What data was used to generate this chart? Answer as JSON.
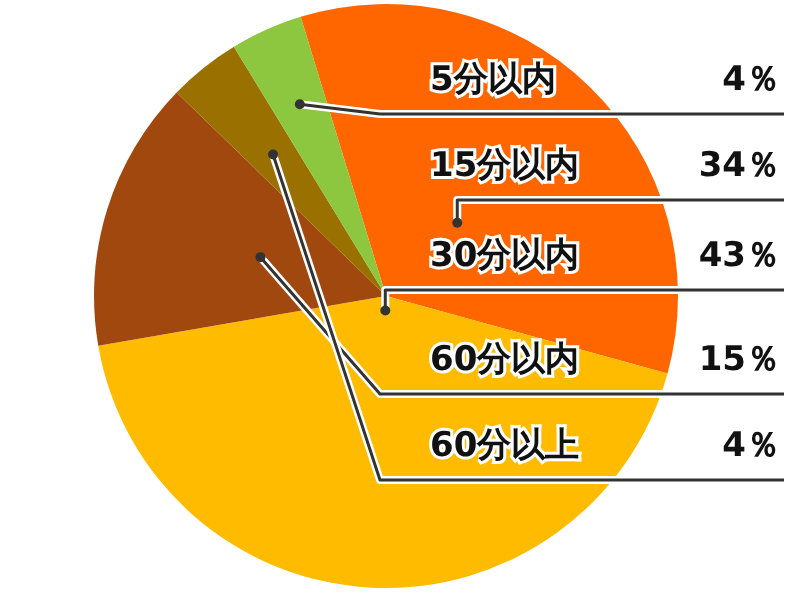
{
  "chart_data": {
    "type": "pie",
    "categories": [
      "5分以内",
      "15分以内",
      "30分以内",
      "60分以内",
      "60分以上"
    ],
    "values": [
      4,
      34,
      43,
      15,
      4
    ],
    "colors": [
      "#8dc63f",
      "#ff6600",
      "#ffbb00",
      "#a0480e",
      "#9a7000"
    ],
    "value_labels": [
      "4％",
      "34％",
      "43％",
      "15％",
      "4％"
    ]
  }
}
